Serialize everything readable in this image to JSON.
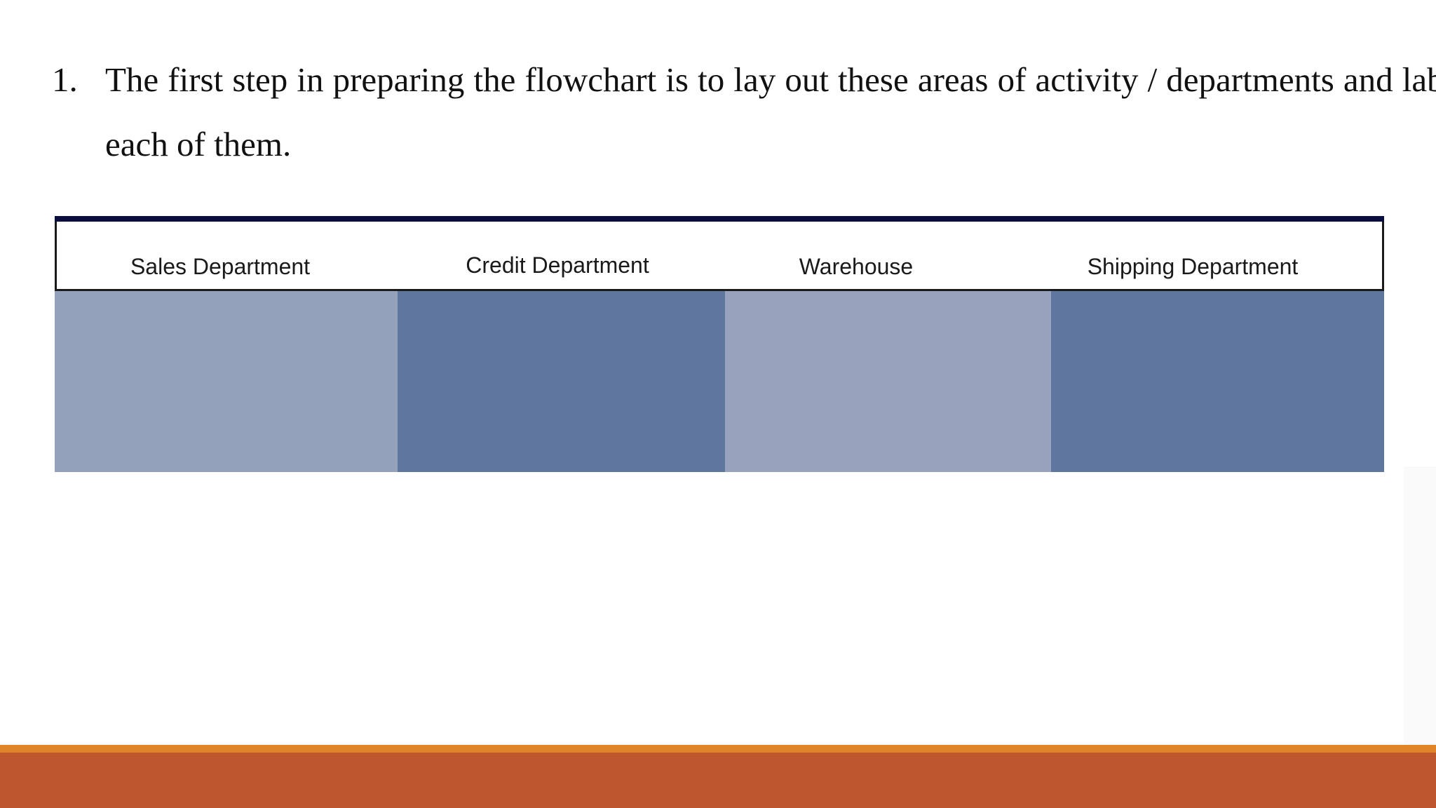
{
  "step": {
    "number": "1.",
    "text": "The first step in preparing the flowchart is to lay out these areas of activity / departments and label each of them."
  },
  "swimlanes": [
    {
      "label": "Sales Department",
      "color": "#94a1ba"
    },
    {
      "label": "Credit Department",
      "color": "#5f779f"
    },
    {
      "label": "Warehouse",
      "color": "#97a2bd"
    },
    {
      "label": "Shipping Department",
      "color": "#5f779f"
    }
  ],
  "theme": {
    "header_bar_color": "#0a0d40",
    "footer_stripe_color": "#e0842a",
    "footer_bar_color": "#be572d"
  }
}
